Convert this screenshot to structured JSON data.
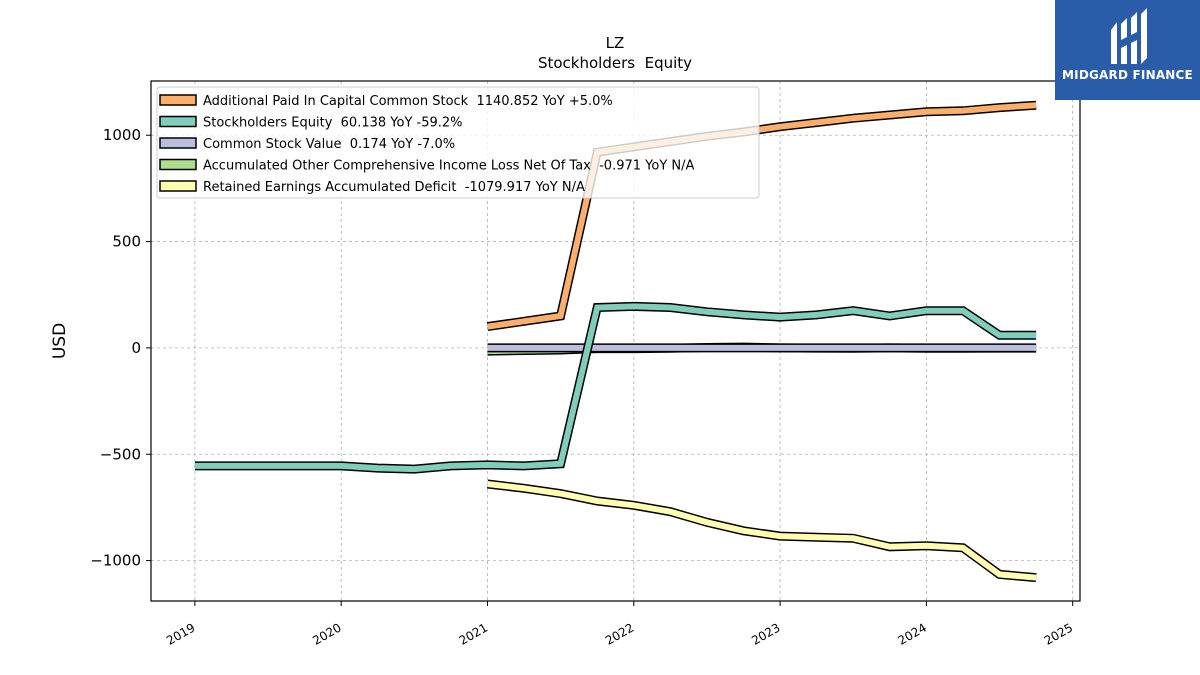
{
  "chart_data": {
    "type": "line",
    "title": "LZ",
    "subtitle": "Stockholders  Equity",
    "xlabel": "",
    "ylabel": "USD",
    "xlim": [
      2018.7,
      2025.05
    ],
    "ylim": [
      -1190,
      1255
    ],
    "x_ticks": [
      2019,
      2020,
      2021,
      2022,
      2023,
      2024,
      2025
    ],
    "x_tick_labels": [
      "2019",
      "2020",
      "2021",
      "2022",
      "2023",
      "2024",
      "2025"
    ],
    "y_ticks": [
      -1000,
      -500,
      0,
      500,
      1000
    ],
    "y_tick_labels": [
      "−1000",
      "−500",
      "0",
      "500",
      "1000"
    ],
    "grid": true,
    "legend_position": "top-left",
    "series": [
      {
        "name": "Additional Paid In Capital Common Stock",
        "legend": "Additional Paid In Capital Common Stock  1140.852 YoY +5.0%",
        "color": "#fdae6b",
        "x": [
          2021.0,
          2021.5,
          2021.75,
          2022.0,
          2022.25,
          2022.5,
          2022.75,
          2023.0,
          2023.25,
          2023.5,
          2023.75,
          2024.0,
          2024.25,
          2024.5,
          2024.75
        ],
        "y": [
          100,
          150,
          920,
          945,
          970,
          995,
          1015,
          1040,
          1060,
          1080,
          1095,
          1110,
          1115,
          1130,
          1141
        ]
      },
      {
        "name": "Stockholders Equity",
        "legend": "Stockholders Equity  60.138 YoY -59.2%",
        "color": "#7fcdbb",
        "x": [
          2019.0,
          2019.25,
          2019.5,
          2019.75,
          2020.0,
          2020.25,
          2020.5,
          2020.75,
          2021.0,
          2021.25,
          2021.5,
          2021.75,
          2022.0,
          2022.25,
          2022.5,
          2022.75,
          2023.0,
          2023.25,
          2023.5,
          2023.75,
          2024.0,
          2024.25,
          2024.5,
          2024.75
        ],
        "y": [
          -555,
          -555,
          -555,
          -555,
          -555,
          -565,
          -570,
          -555,
          -550,
          -555,
          -545,
          190,
          195,
          190,
          170,
          155,
          145,
          155,
          175,
          150,
          175,
          175,
          60,
          60
        ]
      },
      {
        "name": "Common Stock Value",
        "legend": "Common Stock Value  0.174 YoY -7.0%",
        "color": "#bcbddc",
        "x": [
          2021.0,
          2021.5,
          2021.75,
          2022.0,
          2022.5,
          2023.0,
          2023.5,
          2024.0,
          2024.5,
          2024.75
        ],
        "y": [
          0.2,
          0.2,
          0.2,
          0.2,
          0.2,
          0.2,
          0.2,
          0.2,
          0.2,
          0.174
        ]
      },
      {
        "name": "Accumulated Other Comprehensive Income Loss Net Of Tax",
        "legend": "Accumulated Other Comprehensive Income Loss Net Of Tax  -0.971 YoY N/A",
        "color": "#addd8e",
        "x": [
          2021.0,
          2021.5,
          2021.75,
          2022.0,
          2022.25,
          2022.5,
          2022.75,
          2023.0,
          2023.25,
          2023.5,
          2023.75,
          2024.0,
          2024.25,
          2024.5,
          2024.75
        ],
        "y": [
          -15,
          -10,
          -3,
          -3,
          -2,
          2,
          4,
          0,
          -1,
          -2,
          0,
          -2,
          -2,
          -1,
          -1
        ]
      },
      {
        "name": "Retained Earnings Accumulated Deficit",
        "legend": "Retained Earnings Accumulated Deficit  -1079.917 YoY N/A",
        "color": "#ffffb2",
        "x": [
          2021.0,
          2021.25,
          2021.5,
          2021.75,
          2022.0,
          2022.25,
          2022.5,
          2022.75,
          2023.0,
          2023.25,
          2023.5,
          2023.75,
          2024.0,
          2024.25,
          2024.5,
          2024.75
        ],
        "y": [
          -640,
          -660,
          -685,
          -720,
          -740,
          -770,
          -820,
          -860,
          -885,
          -890,
          -895,
          -935,
          -930,
          -940,
          -1065,
          -1080
        ]
      }
    ]
  },
  "logo": {
    "text": "MIDGARD FINANCE",
    "color": "#2a5caa"
  }
}
